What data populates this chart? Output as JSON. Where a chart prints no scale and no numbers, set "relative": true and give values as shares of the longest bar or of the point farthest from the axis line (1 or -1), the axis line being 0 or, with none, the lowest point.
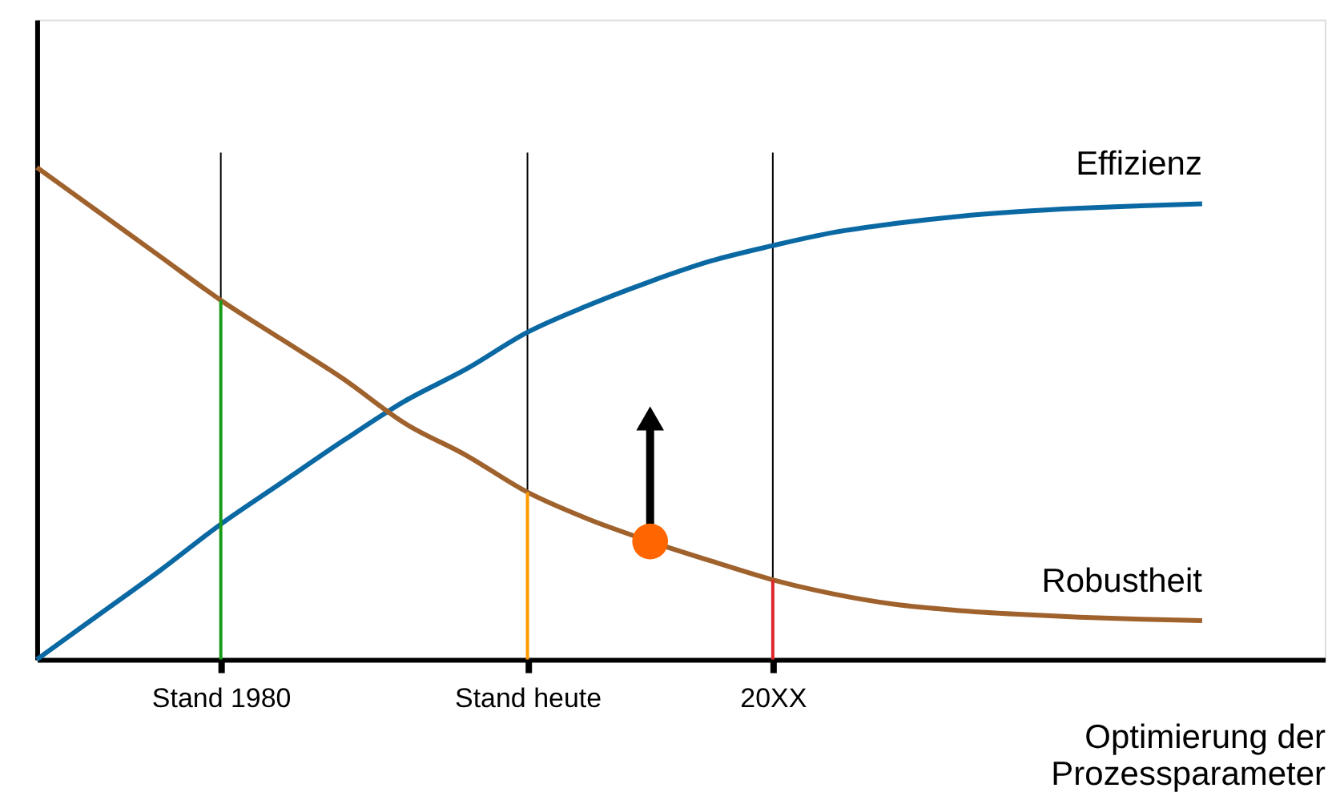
{
  "chart_data": {
    "type": "line",
    "relative": true,
    "xlabel": "Optimierung der\nProzessparameter",
    "categories": [
      null,
      null,
      null,
      "Stand 1980",
      null,
      null,
      null,
      null,
      "Stand heute",
      null,
      null,
      null,
      "20XX",
      null,
      null,
      null,
      null,
      null,
      null,
      null,
      null
    ],
    "grid": "x",
    "line_style": "solid",
    "tick_labels": "x",
    "series": [
      {
        "name": "Effizienz",
        "color": "#0a68a3",
        "values": [
          0,
          0.09,
          0.18,
          0.275,
          0.36,
          0.445,
          0.525,
          0.59,
          0.665,
          0.72,
          0.768,
          0.81,
          0.841,
          0.868,
          0.886,
          0.9,
          0.91,
          0.917,
          0.922,
          0.926,
          null
        ]
      },
      {
        "name": "Robustheit",
        "color": "#a0622d",
        "values": [
          1.0,
          0.91,
          0.82,
          0.73,
          0.65,
          0.57,
          0.48,
          0.415,
          0.34,
          0.285,
          0.24,
          0.2,
          0.162,
          0.133,
          0.112,
          0.1,
          0.092,
          0.086,
          0.082,
          0.079,
          null
        ]
      },
      {
        "type": "bar",
        "colors": [
          null,
          null,
          null,
          "#1a9b1a",
          null,
          null,
          null,
          null,
          "#ff9900",
          null,
          null,
          null,
          "#e0262a",
          null,
          null,
          null,
          null,
          null,
          null,
          null,
          null
        ],
        "values": [
          null,
          null,
          null,
          0.73,
          null,
          null,
          null,
          null,
          0.34,
          null,
          null,
          null,
          0.162,
          null,
          null,
          null,
          null,
          null,
          null,
          null,
          null
        ]
      },
      {
        "type": "scatter",
        "color": "#ff6600",
        "values": [
          null,
          null,
          null,
          null,
          null,
          null,
          null,
          null,
          null,
          null,
          0.24,
          null,
          null,
          null,
          null,
          null,
          null,
          null,
          null,
          null,
          null
        ]
      }
    ]
  }
}
